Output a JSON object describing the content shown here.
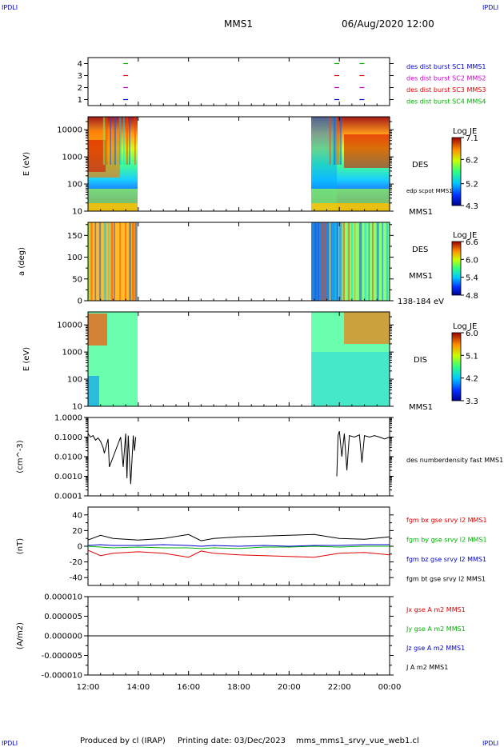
{
  "header": {
    "corner_label": "IPDLI",
    "spacecraft": "MMS1",
    "datetime": "06/Aug/2020 12:00"
  },
  "footer": {
    "produced_by": "Produced by cl (IRAP)",
    "printing_date": "Printing date: 03/Dec/2023",
    "filename": "mms_mms1_srvy_vue_web1.cl"
  },
  "time_axis": {
    "tick_labels": [
      "12:00",
      "14:00",
      "16:00",
      "18:00",
      "20:00",
      "22:00",
      "00:00"
    ],
    "range_hours": [
      12,
      24
    ]
  },
  "colors": {
    "red": "#e00000",
    "green": "#00b000",
    "blue": "#0000cc",
    "magenta": "#cc00cc",
    "black": "#000000"
  },
  "chart_data": [
    {
      "type": "scatter",
      "panel": "burst-intervals",
      "ylim": [
        0.5,
        4.5
      ],
      "yticks": [
        "4",
        "3",
        "2",
        "1"
      ],
      "series": [
        {
          "name": "des dist burst SC1 MMS1",
          "color": "#0000cc",
          "level": 1,
          "times": [
            13.5,
            21.9,
            22.9
          ]
        },
        {
          "name": "des dist burst SC2 MMS2",
          "color": "#cc00cc",
          "level": 2,
          "times": [
            13.5,
            21.9,
            22.9
          ]
        },
        {
          "name": "des dist burst SC3 MMS3",
          "color": "#e00000",
          "level": 3,
          "times": [
            13.5,
            21.9,
            22.9
          ]
        },
        {
          "name": "des dist burst SC4 MMS4",
          "color": "#00b000",
          "level": 4,
          "times": [
            13.5,
            21.9,
            22.9
          ]
        }
      ]
    },
    {
      "type": "heatmap",
      "panel": "des-energy",
      "ylabel": "E (eV)",
      "yscale": "log",
      "ylim": [
        10,
        30000
      ],
      "yticks": [
        "10000",
        "1000",
        "100",
        "10"
      ],
      "right_label": "DES",
      "overlay_label": "edp scpot MMS1",
      "colorbar": {
        "title": "Log JE",
        "ticks": [
          "7.1",
          "6.2",
          "5.2",
          "4.3"
        ],
        "range": [
          4.3,
          7.1
        ]
      },
      "data_intervals_hours": [
        [
          12.0,
          14.0
        ],
        [
          21.0,
          24.0
        ]
      ]
    },
    {
      "type": "heatmap",
      "panel": "des-pitch-angle",
      "ylabel": "a (deg)",
      "ylim": [
        0,
        180
      ],
      "yticks": [
        "150",
        "100",
        "50",
        "0"
      ],
      "right_label": "DES",
      "right_label_2": "MMS1",
      "energy_range": "138-184 eV",
      "colorbar": {
        "title": "Log JE",
        "ticks": [
          "6.6",
          "6.0",
          "5.4",
          "4.8"
        ],
        "range": [
          4.8,
          6.6
        ]
      },
      "data_intervals_hours": [
        [
          12.0,
          14.0
        ],
        [
          21.0,
          24.0
        ]
      ]
    },
    {
      "type": "heatmap",
      "panel": "dis-energy",
      "ylabel": "E (eV)",
      "yscale": "log",
      "ylim": [
        10,
        30000
      ],
      "yticks": [
        "10000",
        "1000",
        "100",
        "10"
      ],
      "right_label": "DIS",
      "colorbar": {
        "title": "Log JE",
        "ticks": [
          "6.0",
          "5.1",
          "4.2",
          "3.3"
        ],
        "range": [
          3.3,
          6.0
        ]
      },
      "data_intervals_hours": [
        [
          12.0,
          14.0
        ],
        [
          21.0,
          24.0
        ]
      ]
    },
    {
      "type": "line",
      "panel": "electron-density",
      "ylabel": "(cm^-3)",
      "yscale": "log",
      "ylim": [
        0.0001,
        1.0
      ],
      "yticks": [
        "1.0000",
        "0.1000",
        "0.0100",
        "0.0010",
        "0.0001"
      ],
      "series": [
        {
          "name": "des numberdensity fast MMS1",
          "color": "#000000",
          "x": [
            12.0,
            12.1,
            12.2,
            12.3,
            12.4,
            12.5,
            12.6,
            12.65,
            12.8,
            12.85,
            13.3,
            13.4,
            13.5,
            13.55,
            13.6,
            13.7,
            13.8,
            13.85,
            13.9,
            21.9,
            21.95,
            22.0,
            22.1,
            22.2,
            22.3,
            22.4,
            22.6,
            22.8,
            22.9,
            23.0,
            23.2,
            23.4,
            23.6,
            23.8,
            24.0
          ],
          "y": [
            0.15,
            0.1,
            0.12,
            0.07,
            0.09,
            0.06,
            0.03,
            0.015,
            0.08,
            0.003,
            0.1,
            0.003,
            0.15,
            0.0008,
            0.12,
            0.0004,
            0.12,
            0.02,
            0.1,
            0.001,
            0.12,
            0.2,
            0.01,
            0.15,
            0.002,
            0.12,
            0.1,
            0.13,
            0.005,
            0.12,
            0.1,
            0.12,
            0.1,
            0.08,
            0.1
          ]
        }
      ]
    },
    {
      "type": "line",
      "panel": "magnetic-field",
      "ylabel": "(nT)",
      "ylim": [
        -50,
        50
      ],
      "yticks": [
        "40",
        "20",
        "0",
        "-20",
        "-40"
      ],
      "x": [
        12.0,
        12.5,
        13.0,
        14.0,
        15.0,
        16.0,
        16.5,
        17.0,
        18.0,
        19.0,
        20.0,
        21.0,
        22.0,
        23.0,
        24.0
      ],
      "series": [
        {
          "name": "fgm bx gse srvy l2 MMS1",
          "color": "#e00000",
          "values": [
            -5,
            -12,
            -9,
            -7,
            -9,
            -14,
            -6,
            -9,
            -11,
            -12,
            -13,
            -14,
            -9,
            -8,
            -11
          ]
        },
        {
          "name": "fgm by gse srvy l2 MMS1",
          "color": "#00b000",
          "values": [
            0,
            -1,
            -2,
            -1,
            -2,
            -2,
            -3,
            -2,
            -3,
            -1,
            -1,
            0,
            -1,
            0,
            0
          ]
        },
        {
          "name": "fgm bz gse srvy l2 MMS1",
          "color": "#0000cc",
          "values": [
            1,
            2,
            1,
            1,
            2,
            1,
            0,
            1,
            0,
            1,
            0,
            1,
            1,
            2,
            2
          ]
        },
        {
          "name": "fgm bt gse srvy l2 MMS1",
          "color": "#000000",
          "values": [
            8,
            14,
            10,
            8,
            10,
            15,
            7,
            10,
            12,
            13,
            14,
            15,
            10,
            9,
            12
          ]
        }
      ]
    },
    {
      "type": "line",
      "panel": "current-density",
      "ylabel": "(A/m2)",
      "ylim": [
        -1e-05,
        1e-05
      ],
      "yticks": [
        "0.000010",
        "0.000005",
        "0.000000",
        "-0.000005",
        "-0.000010"
      ],
      "series": [
        {
          "name": "Jx gse A m2 MMS1",
          "color": "#e00000",
          "values": [
            0,
            0
          ]
        },
        {
          "name": "Jy gse A m2 MMS1",
          "color": "#00b000",
          "values": [
            0,
            0
          ]
        },
        {
          "name": "Jz gse A m2 MMS1",
          "color": "#0000cc",
          "values": [
            0,
            0
          ]
        },
        {
          "name": "J A m2 MMS1",
          "color": "#000000",
          "values": [
            0,
            0
          ]
        }
      ],
      "x": [
        12.0,
        24.0
      ]
    }
  ]
}
